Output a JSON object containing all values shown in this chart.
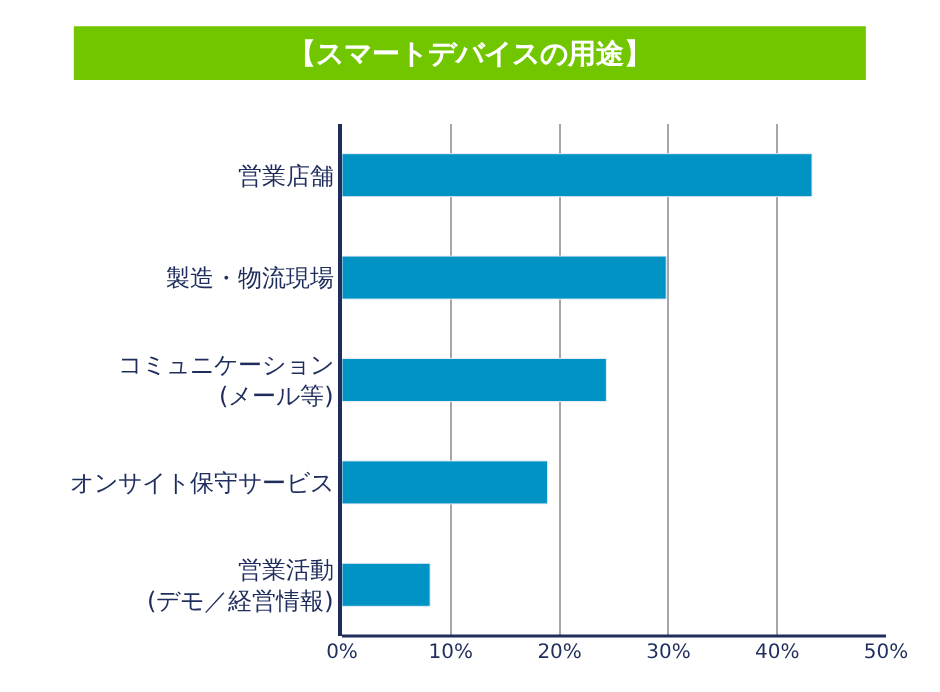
{
  "chart_data": {
    "type": "bar",
    "orientation": "horizontal",
    "title": "【スマートデバイスの用途】",
    "categories": [
      "営業店舗",
      "製造・物流現場",
      "コミュニケーション\n(メール等)",
      "オンサイト保守サービス",
      "営業活動\n(デモ／経営情報)"
    ],
    "values": [
      43.2,
      29.8,
      24.3,
      18.9,
      8.1
    ],
    "color": "#0093c4",
    "xlim": [
      0,
      50
    ],
    "xticks": [
      {
        "value": 0,
        "label": "0%"
      },
      {
        "value": 10,
        "label": "10%"
      },
      {
        "value": 20,
        "label": "20%"
      },
      {
        "value": 30,
        "label": "30%"
      },
      {
        "value": 40,
        "label": "40%"
      },
      {
        "value": 50,
        "label": "50%"
      }
    ],
    "grid": "x"
  }
}
